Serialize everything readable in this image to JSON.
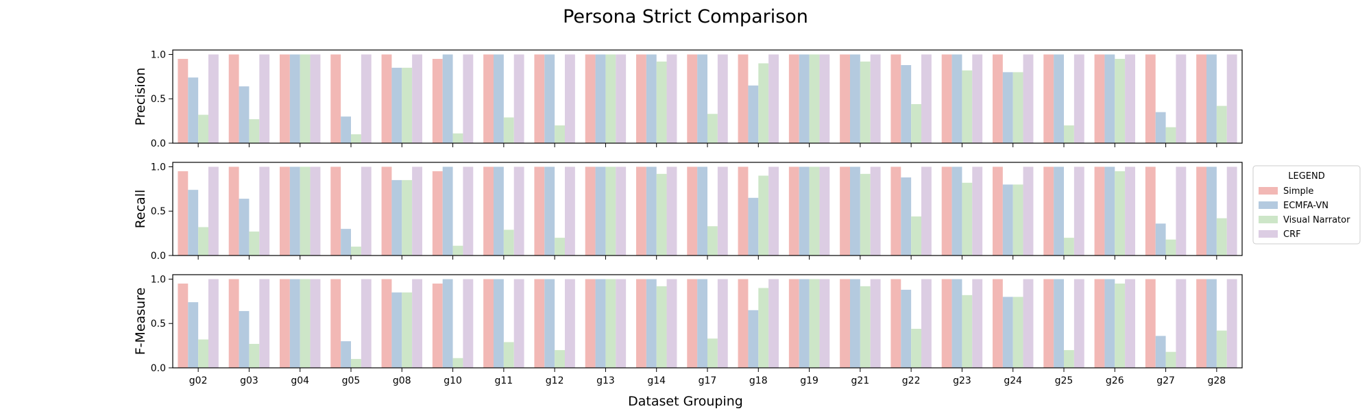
{
  "chart_data": {
    "type": "bar",
    "title": "Persona Strict Comparison",
    "xlabel": "Dataset Grouping",
    "categories": [
      "g02",
      "g03",
      "g04",
      "g05",
      "g08",
      "g10",
      "g11",
      "g12",
      "g13",
      "g14",
      "g17",
      "g18",
      "g19",
      "g21",
      "g22",
      "g23",
      "g24",
      "g25",
      "g26",
      "g27",
      "g28"
    ],
    "legend": {
      "title": "LEGEND",
      "placement": "right",
      "entries": [
        "Simple",
        "ECMFA-VN",
        "Visual Narrator",
        "CRF"
      ]
    },
    "colors": {
      "Simple": "#f2b8b5",
      "ECMFA-VN": "#b4cadf",
      "Visual Narrator": "#cde6c8",
      "CRF": "#dccde3"
    },
    "grid": false,
    "panels": [
      {
        "ylabel": "Precision",
        "ylim": [
          0,
          1.05
        ],
        "yticks": [
          "0.0",
          "0.5",
          "1.0"
        ],
        "series": [
          {
            "name": "Simple",
            "values": [
              0.95,
              1.0,
              1.0,
              1.0,
              1.0,
              0.95,
              1.0,
              1.0,
              1.0,
              1.0,
              1.0,
              1.0,
              1.0,
              1.0,
              1.0,
              1.0,
              1.0,
              1.0,
              1.0,
              1.0,
              1.0
            ]
          },
          {
            "name": "ECMFA-VN",
            "values": [
              0.74,
              0.64,
              1.0,
              0.3,
              0.85,
              1.0,
              1.0,
              1.0,
              1.0,
              1.0,
              1.0,
              0.65,
              1.0,
              1.0,
              0.88,
              1.0,
              0.8,
              1.0,
              1.0,
              0.35,
              1.0
            ]
          },
          {
            "name": "Visual Narrator",
            "values": [
              0.32,
              0.27,
              1.0,
              0.1,
              0.85,
              0.11,
              0.29,
              0.2,
              1.0,
              0.92,
              0.33,
              0.9,
              1.0,
              0.92,
              0.44,
              0.82,
              0.8,
              0.2,
              0.95,
              0.18,
              0.42
            ]
          },
          {
            "name": "CRF",
            "values": [
              1.0,
              1.0,
              1.0,
              1.0,
              1.0,
              1.0,
              1.0,
              1.0,
              1.0,
              1.0,
              1.0,
              1.0,
              1.0,
              1.0,
              1.0,
              1.0,
              1.0,
              1.0,
              1.0,
              1.0,
              1.0
            ]
          }
        ]
      },
      {
        "ylabel": "Recall",
        "ylim": [
          0,
          1.05
        ],
        "yticks": [
          "0.0",
          "0.5",
          "1.0"
        ],
        "series": [
          {
            "name": "Simple",
            "values": [
              0.95,
              1.0,
              1.0,
              1.0,
              1.0,
              0.95,
              1.0,
              1.0,
              1.0,
              1.0,
              1.0,
              1.0,
              1.0,
              1.0,
              1.0,
              1.0,
              1.0,
              1.0,
              1.0,
              1.0,
              1.0
            ]
          },
          {
            "name": "ECMFA-VN",
            "values": [
              0.74,
              0.64,
              1.0,
              0.3,
              0.85,
              1.0,
              1.0,
              1.0,
              1.0,
              1.0,
              1.0,
              0.65,
              1.0,
              1.0,
              0.88,
              1.0,
              0.8,
              1.0,
              1.0,
              0.36,
              1.0
            ]
          },
          {
            "name": "Visual Narrator",
            "values": [
              0.32,
              0.27,
              1.0,
              0.1,
              0.85,
              0.11,
              0.29,
              0.2,
              1.0,
              0.92,
              0.33,
              0.9,
              1.0,
              0.92,
              0.44,
              0.82,
              0.8,
              0.2,
              0.95,
              0.18,
              0.42
            ]
          },
          {
            "name": "CRF",
            "values": [
              1.0,
              1.0,
              1.0,
              1.0,
              1.0,
              1.0,
              1.0,
              1.0,
              1.0,
              1.0,
              1.0,
              1.0,
              1.0,
              1.0,
              1.0,
              1.0,
              1.0,
              1.0,
              1.0,
              1.0,
              1.0
            ]
          }
        ]
      },
      {
        "ylabel": "F-Measure",
        "ylim": [
          0,
          1.05
        ],
        "yticks": [
          "0.0",
          "0.5",
          "1.0"
        ],
        "series": [
          {
            "name": "Simple",
            "values": [
              0.95,
              1.0,
              1.0,
              1.0,
              1.0,
              0.95,
              1.0,
              1.0,
              1.0,
              1.0,
              1.0,
              1.0,
              1.0,
              1.0,
              1.0,
              1.0,
              1.0,
              1.0,
              1.0,
              1.0,
              1.0
            ]
          },
          {
            "name": "ECMFA-VN",
            "values": [
              0.74,
              0.64,
              1.0,
              0.3,
              0.85,
              1.0,
              1.0,
              1.0,
              1.0,
              1.0,
              1.0,
              0.65,
              1.0,
              1.0,
              0.88,
              1.0,
              0.8,
              1.0,
              1.0,
              0.36,
              1.0
            ]
          },
          {
            "name": "Visual Narrator",
            "values": [
              0.32,
              0.27,
              1.0,
              0.1,
              0.85,
              0.11,
              0.29,
              0.2,
              1.0,
              0.92,
              0.33,
              0.9,
              1.0,
              0.92,
              0.44,
              0.82,
              0.8,
              0.2,
              0.95,
              0.18,
              0.42
            ]
          },
          {
            "name": "CRF",
            "values": [
              1.0,
              1.0,
              1.0,
              1.0,
              1.0,
              1.0,
              1.0,
              1.0,
              1.0,
              1.0,
              1.0,
              1.0,
              1.0,
              1.0,
              1.0,
              1.0,
              1.0,
              1.0,
              1.0,
              1.0,
              1.0
            ]
          }
        ]
      }
    ]
  }
}
